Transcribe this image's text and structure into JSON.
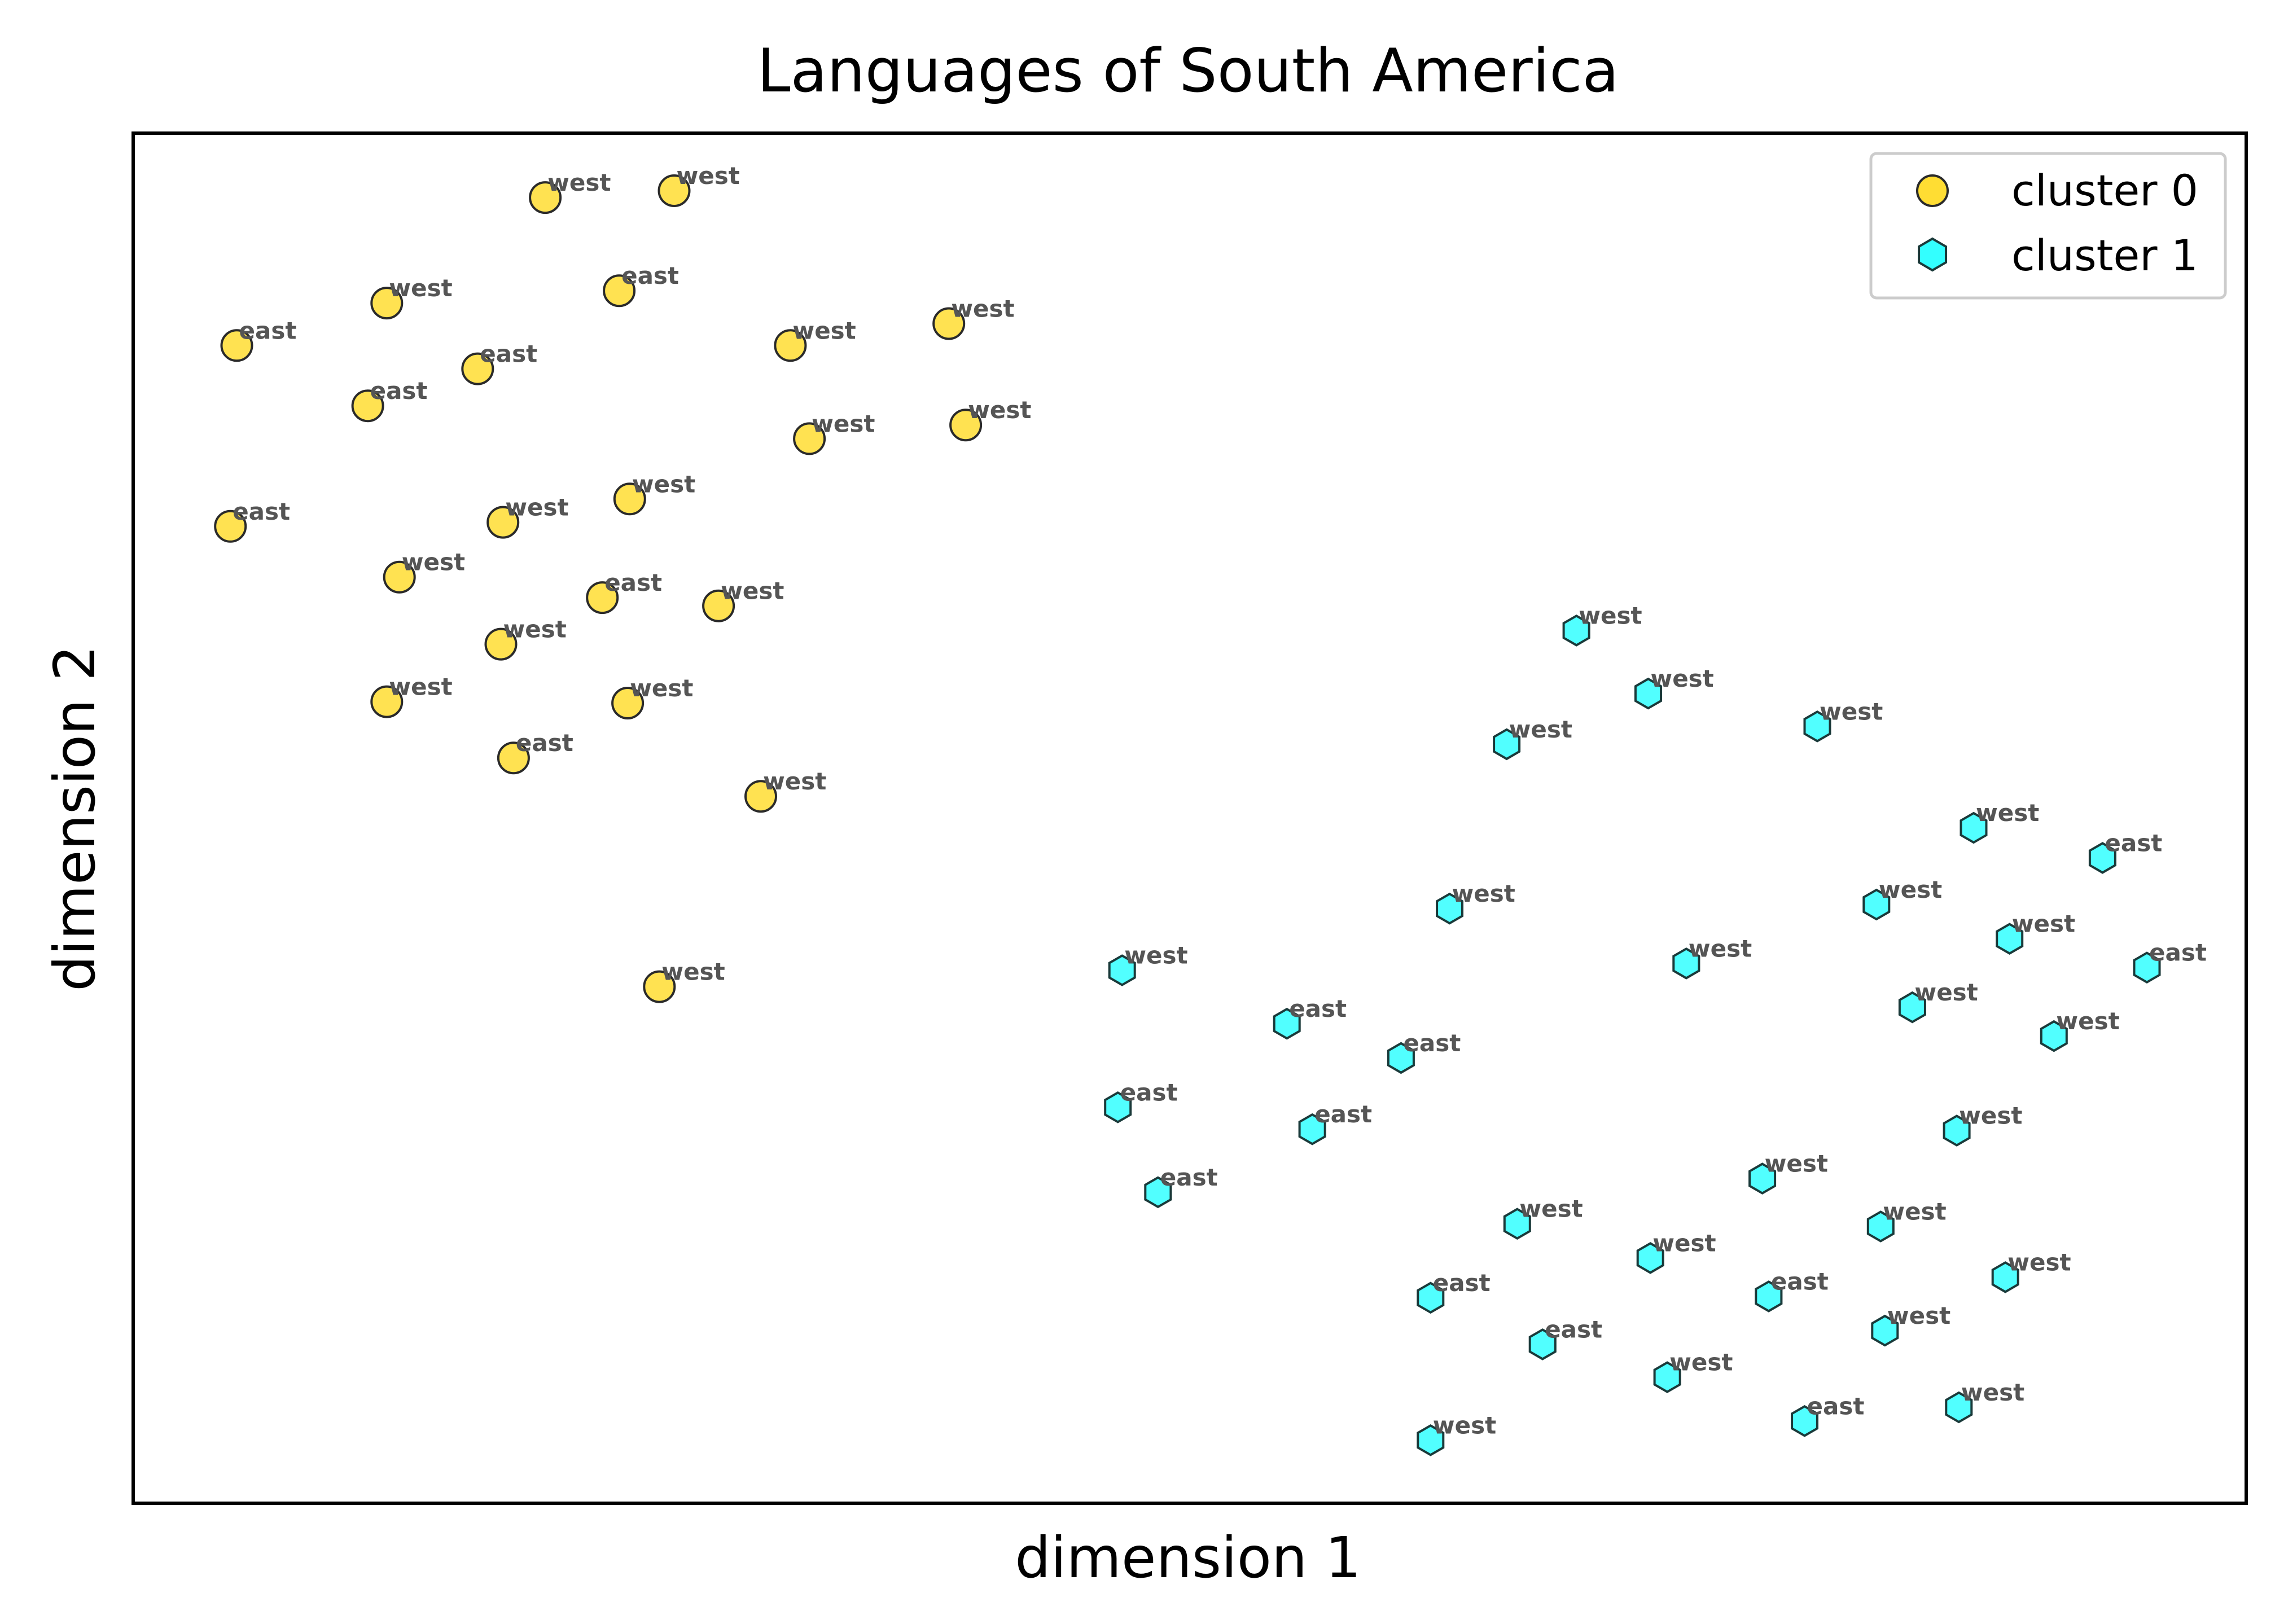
{
  "chart_data": {
    "type": "scatter",
    "title": "Languages of South America",
    "xlabel": "dimension 1",
    "ylabel": "dimension 2",
    "xlim": [
      0,
      100
    ],
    "ylim": [
      0,
      100
    ],
    "ticks": "hidden",
    "grid": false,
    "legend_position": "top-right",
    "series": [
      {
        "name": "cluster 0",
        "marker": "circle",
        "color": "#FFDD33",
        "edge_color": "#2a2a2a",
        "points": [
          {
            "x": 19.5,
            "y": 95.3,
            "label": "west"
          },
          {
            "x": 25.6,
            "y": 95.8,
            "label": "west"
          },
          {
            "x": 12.0,
            "y": 87.6,
            "label": "west"
          },
          {
            "x": 23.0,
            "y": 88.5,
            "label": "east"
          },
          {
            "x": 4.9,
            "y": 84.5,
            "label": "east"
          },
          {
            "x": 16.3,
            "y": 82.8,
            "label": "east"
          },
          {
            "x": 31.1,
            "y": 84.5,
            "label": "west"
          },
          {
            "x": 38.6,
            "y": 86.1,
            "label": "west"
          },
          {
            "x": 11.1,
            "y": 80.1,
            "label": "east"
          },
          {
            "x": 32.0,
            "y": 77.7,
            "label": "west"
          },
          {
            "x": 39.4,
            "y": 78.7,
            "label": "west"
          },
          {
            "x": 4.6,
            "y": 71.3,
            "label": "east"
          },
          {
            "x": 17.5,
            "y": 71.6,
            "label": "west"
          },
          {
            "x": 23.5,
            "y": 73.3,
            "label": "west"
          },
          {
            "x": 12.6,
            "y": 67.6,
            "label": "west"
          },
          {
            "x": 22.2,
            "y": 66.1,
            "label": "east"
          },
          {
            "x": 27.7,
            "y": 65.5,
            "label": "west"
          },
          {
            "x": 17.4,
            "y": 62.7,
            "label": "west"
          },
          {
            "x": 12.0,
            "y": 58.5,
            "label": "west"
          },
          {
            "x": 23.4,
            "y": 58.4,
            "label": "west"
          },
          {
            "x": 18.0,
            "y": 54.4,
            "label": "east"
          },
          {
            "x": 29.7,
            "y": 51.6,
            "label": "west"
          },
          {
            "x": 24.9,
            "y": 37.7,
            "label": "west"
          }
        ]
      },
      {
        "name": "cluster 1",
        "marker": "hexagon",
        "color": "#33FFFF",
        "edge_color": "#1a3a3a",
        "points": [
          {
            "x": 68.3,
            "y": 63.7,
            "label": "west"
          },
          {
            "x": 71.7,
            "y": 59.1,
            "label": "west"
          },
          {
            "x": 65.0,
            "y": 55.4,
            "label": "west"
          },
          {
            "x": 79.7,
            "y": 56.7,
            "label": "west"
          },
          {
            "x": 87.1,
            "y": 49.3,
            "label": "west"
          },
          {
            "x": 93.2,
            "y": 47.1,
            "label": "east"
          },
          {
            "x": 62.3,
            "y": 43.4,
            "label": "west"
          },
          {
            "x": 82.5,
            "y": 43.7,
            "label": "west"
          },
          {
            "x": 88.8,
            "y": 41.2,
            "label": "west"
          },
          {
            "x": 73.5,
            "y": 39.4,
            "label": "west"
          },
          {
            "x": 95.3,
            "y": 39.1,
            "label": "east"
          },
          {
            "x": 46.8,
            "y": 38.9,
            "label": "west"
          },
          {
            "x": 84.2,
            "y": 36.2,
            "label": "west"
          },
          {
            "x": 54.6,
            "y": 35.0,
            "label": "east"
          },
          {
            "x": 90.9,
            "y": 34.1,
            "label": "west"
          },
          {
            "x": 60.0,
            "y": 32.5,
            "label": "east"
          },
          {
            "x": 46.6,
            "y": 28.9,
            "label": "east"
          },
          {
            "x": 55.8,
            "y": 27.3,
            "label": "east"
          },
          {
            "x": 86.3,
            "y": 27.2,
            "label": "west"
          },
          {
            "x": 77.1,
            "y": 23.7,
            "label": "west"
          },
          {
            "x": 48.5,
            "y": 22.7,
            "label": "east"
          },
          {
            "x": 65.5,
            "y": 20.4,
            "label": "west"
          },
          {
            "x": 82.7,
            "y": 20.2,
            "label": "west"
          },
          {
            "x": 71.8,
            "y": 17.9,
            "label": "west"
          },
          {
            "x": 88.6,
            "y": 16.5,
            "label": "west"
          },
          {
            "x": 61.4,
            "y": 15.0,
            "label": "east"
          },
          {
            "x": 77.4,
            "y": 15.1,
            "label": "east"
          },
          {
            "x": 82.9,
            "y": 12.6,
            "label": "west"
          },
          {
            "x": 66.7,
            "y": 11.6,
            "label": "east"
          },
          {
            "x": 72.6,
            "y": 9.2,
            "label": "west"
          },
          {
            "x": 79.1,
            "y": 6.0,
            "label": "east"
          },
          {
            "x": 86.4,
            "y": 7.0,
            "label": "west"
          },
          {
            "x": 61.4,
            "y": 4.6,
            "label": "west"
          }
        ]
      }
    ]
  }
}
